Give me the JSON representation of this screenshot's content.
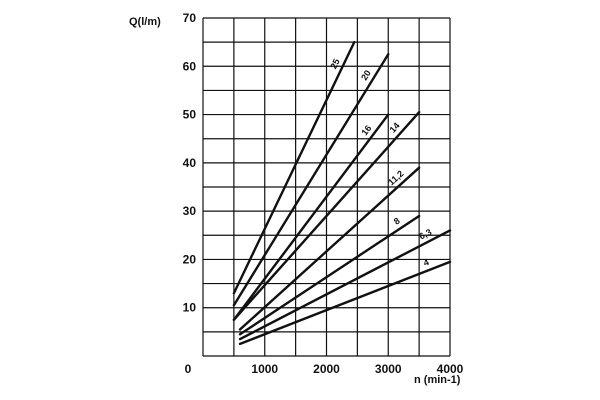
{
  "chart_data": {
    "type": "line",
    "title": "",
    "xlabel": "n (min-1)",
    "ylabel": "Q(l/m)",
    "xlim": [
      0,
      4000
    ],
    "ylim": [
      0,
      70
    ],
    "x_ticks": [
      "0",
      "1000",
      "2000",
      "3000",
      "4000"
    ],
    "y_ticks": [
      "10",
      "20",
      "30",
      "40",
      "50",
      "60",
      "70"
    ],
    "grid": true,
    "legend": "none",
    "line_color": "#111111",
    "series": [
      {
        "name": "25",
        "x": [
          500,
          2450
        ],
        "y": [
          13,
          65
        ]
      },
      {
        "name": "20",
        "x": [
          500,
          3000
        ],
        "y": [
          10.5,
          62.5
        ]
      },
      {
        "name": "16",
        "x": [
          500,
          3000
        ],
        "y": [
          7.5,
          50
        ]
      },
      {
        "name": "14",
        "x": [
          500,
          3500
        ],
        "y": [
          7.5,
          50.5
        ]
      },
      {
        "name": "11,2",
        "x": [
          600,
          3500
        ],
        "y": [
          5.5,
          39
        ]
      },
      {
        "name": "8",
        "x": [
          600,
          3500
        ],
        "y": [
          4.5,
          29
        ]
      },
      {
        "name": "6,3",
        "x": [
          600,
          4000
        ],
        "y": [
          3.5,
          26
        ]
      },
      {
        "name": "4",
        "x": [
          600,
          4000
        ],
        "y": [
          2.5,
          19.5
        ]
      }
    ]
  }
}
